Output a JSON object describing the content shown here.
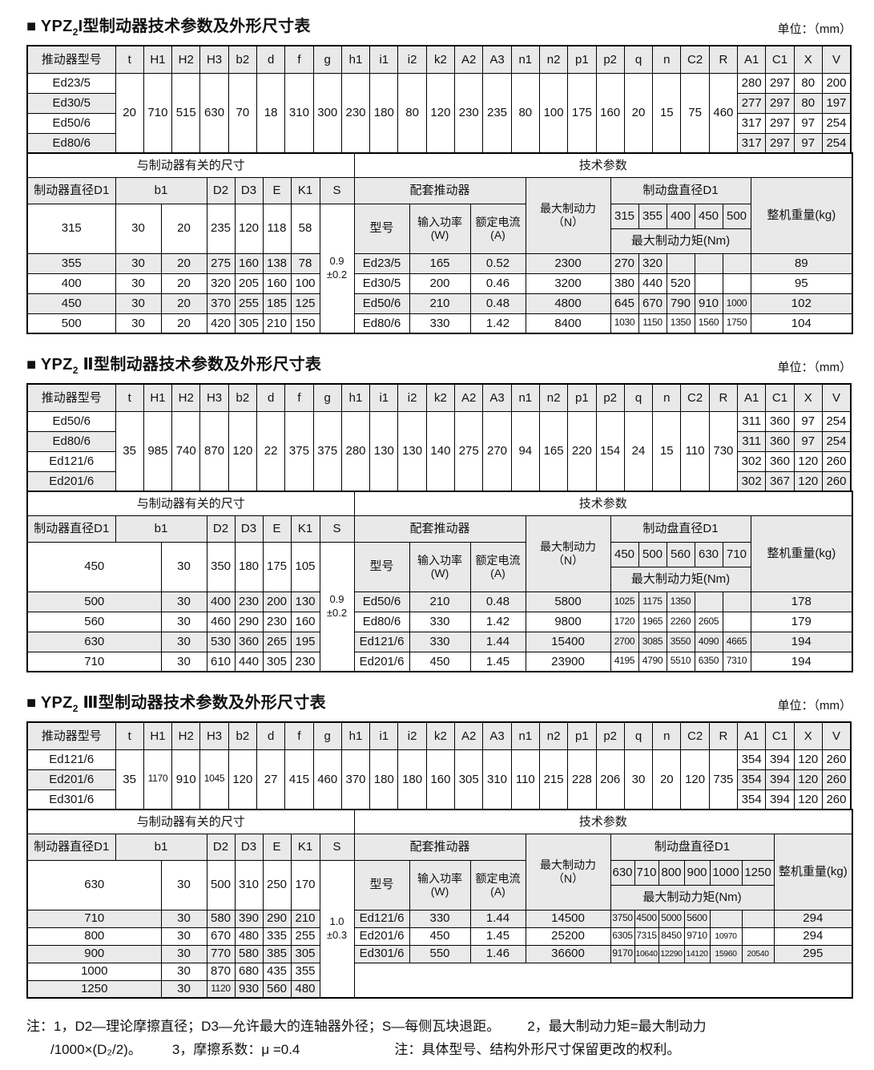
{
  "page": {
    "background": "#ffffff",
    "header_bg": "#e9e9e9",
    "zebra_bg": "#eaeaea",
    "border_color": "#000000",
    "notes": {
      "line1a": "注：1，D2—理论摩擦直径；D3—允许最大的连轴器外径；S—每侧瓦块退距。",
      "line1b": "2，最大制动力矩=最大制动力",
      "line2a": "/1000×(D₂/2)。",
      "line2b": "3，摩擦系数：μ =0.4",
      "line2c": "注：具体型号、结构外形尺寸保留更改的权利。"
    }
  },
  "sections": [
    {
      "title": {
        "marker": "■ ",
        "brand": "YPZ",
        "sub": "2",
        "roman": "I",
        "rest": "型制动器技术参数及外形尺寸表"
      },
      "unit_label": "单位：（mm）",
      "dim_table": {
        "model_header": "推动器型号",
        "columns": [
          "t",
          "H1",
          "H2",
          "H3",
          "b2",
          "d",
          "f",
          "g",
          "h1",
          "i1",
          "i2",
          "k2",
          "A2",
          "A3",
          "n1",
          "n2",
          "p1",
          "p2",
          "q",
          "n",
          "C2",
          "R"
        ],
        "tail_columns": [
          "A1",
          "C1",
          "X",
          "V"
        ],
        "models": [
          "Ed23/5",
          "Ed30/5",
          "Ed50/6",
          "Ed80/6"
        ],
        "shared_values": [
          "20",
          "710",
          "515",
          "630",
          "70",
          "18",
          "310",
          "300",
          "230",
          "180",
          "80",
          "120",
          "230",
          "235",
          "80",
          "100",
          "175",
          "160",
          "20",
          "15",
          "75",
          "460"
        ],
        "tail_values": [
          [
            "280",
            "297",
            "80",
            "200"
          ],
          [
            "277",
            "297",
            "80",
            "197"
          ],
          [
            "317",
            "297",
            "97",
            "254"
          ],
          [
            "317",
            "297",
            "97",
            "254"
          ]
        ]
      },
      "detail_table": {
        "left_caption": "与制动器有关的尺寸",
        "right_caption": "技术参数",
        "d1_header": "制动器直径D1",
        "b1_header": "b1",
        "dim_columns": [
          "D2",
          "D3",
          "E",
          "K1"
        ],
        "s_header": "S",
        "s_value": [
          "0.9",
          "±0.2"
        ],
        "thruster_caption": "配套推动器",
        "model_header": "型号",
        "power_header": [
          "输入功率",
          "(W)"
        ],
        "current_header": [
          "额定电流",
          "(A)"
        ],
        "force_header": [
          "最大制动力",
          "（N）"
        ],
        "disc_header": "制动盘直径D1",
        "torque_header": "最大制动力矩(Nm)",
        "weight_header": "整机重量(kg)",
        "diameters": [
          "315",
          "355",
          "400",
          "450",
          "500"
        ],
        "first_dim_row": {
          "d1": "315",
          "b1": [
            "30",
            "20"
          ],
          "vals": [
            "235",
            "120",
            "118",
            "58"
          ]
        },
        "dim_rows": [
          {
            "d1": "355",
            "b1": [
              "30",
              "20"
            ],
            "vals": [
              "275",
              "160",
              "138",
              "78"
            ]
          },
          {
            "d1": "400",
            "b1": [
              "30",
              "20"
            ],
            "vals": [
              "320",
              "205",
              "160",
              "100"
            ]
          },
          {
            "d1": "450",
            "b1": [
              "30",
              "20"
            ],
            "vals": [
              "370",
              "255",
              "185",
              "125"
            ]
          },
          {
            "d1": "500",
            "b1": [
              "30",
              "20"
            ],
            "vals": [
              "420",
              "305",
              "210",
              "150"
            ]
          }
        ],
        "tech_rows": [
          {
            "model": "Ed23/5",
            "power": "165",
            "current": "0.52",
            "force": "2300",
            "torques": [
              "270",
              "320",
              "",
              "",
              ""
            ],
            "weight": "89"
          },
          {
            "model": "Ed30/5",
            "power": "200",
            "current": "0.46",
            "force": "3200",
            "torques": [
              "380",
              "440",
              "520",
              "",
              ""
            ],
            "weight": "95"
          },
          {
            "model": "Ed50/6",
            "power": "210",
            "current": "0.48",
            "force": "4800",
            "torques": [
              "645",
              "670",
              "790",
              "910",
              "1000"
            ],
            "weight": "102"
          },
          {
            "model": "Ed80/6",
            "power": "330",
            "current": "1.42",
            "force": "8400",
            "torques": [
              "1030",
              "1150",
              "1350",
              "1560",
              "1750"
            ],
            "weight": "104"
          }
        ]
      }
    },
    {
      "title": {
        "marker": "■ ",
        "brand": "YPZ",
        "sub": "2",
        "roman": " Ⅱ",
        "rest": "型制动器技术参数及外形尺寸表"
      },
      "unit_label": "单位：（mm）",
      "dim_table": {
        "model_header": "推动器型号",
        "columns": [
          "t",
          "H1",
          "H2",
          "H3",
          "b2",
          "d",
          "f",
          "g",
          "h1",
          "i1",
          "i2",
          "k2",
          "A2",
          "A3",
          "n1",
          "n2",
          "p1",
          "p2",
          "q",
          "n",
          "C2",
          "R"
        ],
        "tail_columns": [
          "A1",
          "C1",
          "X",
          "V"
        ],
        "models": [
          "Ed50/6",
          "Ed80/6",
          "Ed121/6",
          "Ed201/6"
        ],
        "shared_values": [
          "35",
          "985",
          "740",
          "870",
          "120",
          "22",
          "375",
          "375",
          "280",
          "130",
          "130",
          "140",
          "275",
          "270",
          "94",
          "165",
          "220",
          "154",
          "24",
          "15",
          "110",
          "730"
        ],
        "tail_values": [
          [
            "311",
            "360",
            "97",
            "254"
          ],
          [
            "311",
            "360",
            "97",
            "254"
          ],
          [
            "302",
            "360",
            "120",
            "260"
          ],
          [
            "302",
            "367",
            "120",
            "260"
          ]
        ]
      },
      "detail_table": {
        "left_caption": "与制动器有关的尺寸",
        "right_caption": "技术参数",
        "d1_header": "制动器直径D1",
        "b1_header": "b1",
        "dim_columns": [
          "D2",
          "D3",
          "E",
          "K1"
        ],
        "s_header": "S",
        "s_value": [
          "0.9",
          "±0.2"
        ],
        "thruster_caption": "配套推动器",
        "model_header": "型号",
        "power_header": [
          "输入功率",
          "(W)"
        ],
        "current_header": [
          "额定电流",
          "(A)"
        ],
        "force_header": [
          "最大制动力",
          "（N）"
        ],
        "disc_header": "制动盘直径D1",
        "torque_header": "最大制动力矩(Nm)",
        "weight_header": "整机重量(kg)",
        "diameters": [
          "450",
          "500",
          "560",
          "630",
          "710"
        ],
        "first_dim_row": {
          "d1": "450",
          "b1": [
            "30"
          ],
          "vals": [
            "350",
            "180",
            "175",
            "105"
          ]
        },
        "dim_rows": [
          {
            "d1": "500",
            "b1": [
              "30"
            ],
            "vals": [
              "400",
              "230",
              "200",
              "130"
            ]
          },
          {
            "d1": "560",
            "b1": [
              "30"
            ],
            "vals": [
              "460",
              "290",
              "230",
              "160"
            ]
          },
          {
            "d1": "630",
            "b1": [
              "30"
            ],
            "vals": [
              "530",
              "360",
              "265",
              "195"
            ]
          },
          {
            "d1": "710",
            "b1": [
              "30"
            ],
            "vals": [
              "610",
              "440",
              "305",
              "230"
            ]
          }
        ],
        "tech_rows": [
          {
            "model": "Ed50/6",
            "power": "210",
            "current": "0.48",
            "force": "5800",
            "torques": [
              "1025",
              "1175",
              "1350",
              "",
              ""
            ],
            "weight": "178"
          },
          {
            "model": "Ed80/6",
            "power": "330",
            "current": "1.42",
            "force": "9800",
            "torques": [
              "1720",
              "1965",
              "2260",
              "2605",
              ""
            ],
            "weight": "179"
          },
          {
            "model": "Ed121/6",
            "power": "330",
            "current": "1.44",
            "force": "15400",
            "torques": [
              "2700",
              "3085",
              "3550",
              "4090",
              "4665"
            ],
            "weight": "194"
          },
          {
            "model": "Ed201/6",
            "power": "450",
            "current": "1.45",
            "force": "23900",
            "torques": [
              "4195",
              "4790",
              "5510",
              "6350",
              "7310"
            ],
            "weight": "194"
          }
        ]
      }
    },
    {
      "title": {
        "marker": "■ ",
        "brand": "YPZ",
        "sub": "2",
        "roman": " Ⅲ",
        "rest": "型制动器技术参数及外形尺寸表"
      },
      "unit_label": "单位：（mm）",
      "dim_table": {
        "model_header": "推动器型号",
        "columns": [
          "t",
          "H1",
          "H2",
          "H3",
          "b2",
          "d",
          "f",
          "g",
          "h1",
          "i1",
          "i2",
          "k2",
          "A2",
          "A3",
          "n1",
          "n2",
          "p1",
          "p2",
          "q",
          "n",
          "C2",
          "R"
        ],
        "tail_columns": [
          "A1",
          "C1",
          "X",
          "V"
        ],
        "models": [
          "Ed121/6",
          "Ed201/6",
          "Ed301/6"
        ],
        "shared_values": [
          "35",
          "1170",
          "910",
          "1045",
          "120",
          "27",
          "415",
          "460",
          "370",
          "180",
          "180",
          "160",
          "305",
          "310",
          "110",
          "215",
          "228",
          "206",
          "30",
          "20",
          "120",
          "735"
        ],
        "tail_values": [
          [
            "354",
            "394",
            "120",
            "260"
          ],
          [
            "354",
            "394",
            "120",
            "260"
          ],
          [
            "354",
            "394",
            "120",
            "260"
          ]
        ]
      },
      "detail_table": {
        "left_caption": "与制动器有关的尺寸",
        "right_caption": "技术参数",
        "d1_header": "制动器直径D1",
        "b1_header": "b1",
        "dim_columns": [
          "D2",
          "D3",
          "E",
          "K1"
        ],
        "s_header": "S",
        "s_value": [
          "1.0",
          "±0.3"
        ],
        "thruster_caption": "配套推动器",
        "model_header": "型号",
        "power_header": [
          "输入功率",
          "(W)"
        ],
        "current_header": [
          "额定电流",
          "(A)"
        ],
        "force_header": [
          "最大制动力",
          "（N）"
        ],
        "disc_header": "制动盘直径D1",
        "torque_header": "最大制动力矩(Nm)",
        "weight_header": "整机重量(kg)",
        "diameters": [
          "630",
          "710",
          "800",
          "900",
          "1000",
          "1250"
        ],
        "first_dim_row": {
          "d1": "630",
          "b1": [
            "30"
          ],
          "vals": [
            "500",
            "310",
            "250",
            "170"
          ]
        },
        "dim_rows": [
          {
            "d1": "710",
            "b1": [
              "30"
            ],
            "vals": [
              "580",
              "390",
              "290",
              "210"
            ]
          },
          {
            "d1": "800",
            "b1": [
              "30"
            ],
            "vals": [
              "670",
              "480",
              "335",
              "255"
            ]
          },
          {
            "d1": "900",
            "b1": [
              "30"
            ],
            "vals": [
              "770",
              "580",
              "385",
              "305"
            ]
          },
          {
            "d1": "1000",
            "b1": [
              "30"
            ],
            "vals": [
              "870",
              "680",
              "435",
              "355"
            ]
          },
          {
            "d1": "1250",
            "b1": [
              "30"
            ],
            "vals": [
              "1120",
              "930",
              "560",
              "480"
            ]
          }
        ],
        "tech_rows": [
          {
            "model": "Ed121/6",
            "power": "330",
            "current": "1.44",
            "force": "14500",
            "torques": [
              "3750",
              "4500",
              "5000",
              "5600",
              "",
              ""
            ],
            "weight": "294"
          },
          {
            "model": "Ed201/6",
            "power": "450",
            "current": "1.45",
            "force": "25200",
            "torques": [
              "6305",
              "7315",
              "8450",
              "9710",
              "10970",
              ""
            ],
            "weight": "294"
          },
          {
            "model": "Ed301/6",
            "power": "550",
            "current": "1.46",
            "force": "36600",
            "torques": [
              "9170",
              "10640",
              "12290",
              "14120",
              "15960",
              "20540"
            ],
            "weight": "295"
          }
        ]
      }
    }
  ]
}
